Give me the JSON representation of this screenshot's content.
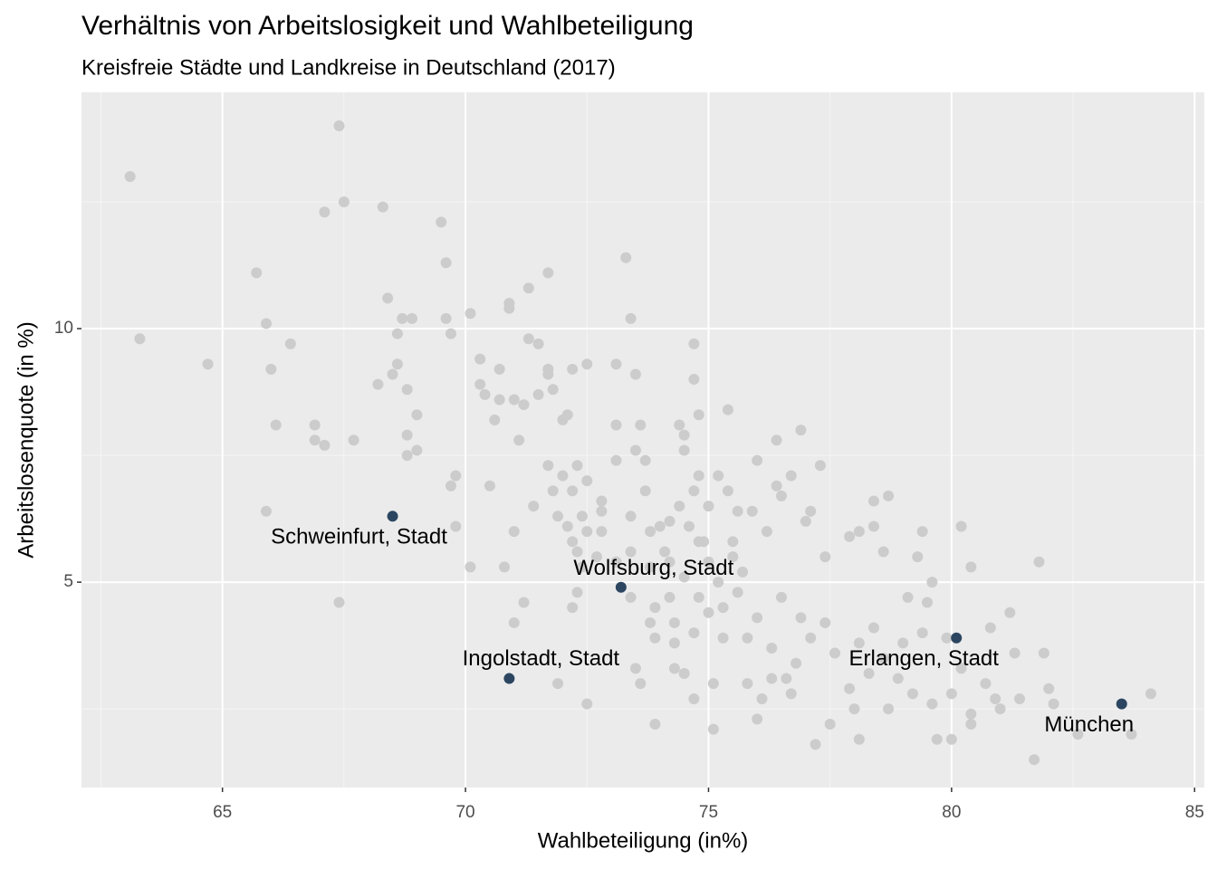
{
  "chart_data": {
    "type": "scatter",
    "title": "Verhältnis von Arbeitslosigkeit und Wahlbeteiligung",
    "subtitle": "Kreisfreie Städte und Landkreise in Deutschland (2017)",
    "x_label": "Wahlbeteiligung (in%)",
    "y_label": "Arbeitslosenquote (in %)",
    "xlim": [
      62.1,
      85.2
    ],
    "ylim": [
      0.95,
      14.66
    ],
    "xticks": [
      65,
      70,
      75,
      80,
      85
    ],
    "yticks": [
      5,
      10
    ],
    "xminor": [
      62.5,
      67.5,
      72.5,
      77.5,
      82.5
    ],
    "yminor": [
      2.5,
      7.5,
      12.5
    ],
    "grid": true,
    "points": {
      "color": "#cccccc",
      "x": [
        63.1,
        63.3,
        64.7,
        65.7,
        65.9,
        65.9,
        66.0,
        66.1,
        66.4,
        66.9,
        66.9,
        67.1,
        67.1,
        67.4,
        67.5,
        67.4,
        67.7,
        68.2,
        68.3,
        68.4,
        68.5,
        68.6,
        68.6,
        68.7,
        68.8,
        68.8,
        68.8,
        68.9,
        69.0,
        69.0,
        69.5,
        69.6,
        69.6,
        69.7,
        69.8,
        69.7,
        69.8,
        70.1,
        70.1,
        70.3,
        70.3,
        70.4,
        70.5,
        70.6,
        70.7,
        70.7,
        70.8,
        70.9,
        70.9,
        71.0,
        71.0,
        71.0,
        71.1,
        71.2,
        71.3,
        71.3,
        71.2,
        71.4,
        71.5,
        71.5,
        71.7,
        71.7,
        71.7,
        71.7,
        71.8,
        71.8,
        71.9,
        71.9,
        72.0,
        72.0,
        72.1,
        72.1,
        72.2,
        72.2,
        72.2,
        72.2,
        72.3,
        72.3,
        72.3,
        72.4,
        72.4,
        72.5,
        72.5,
        72.5,
        72.5,
        72.7,
        72.8,
        72.8,
        73.1,
        73.1,
        73.1,
        73.3,
        73.4,
        73.4,
        73.4,
        73.5,
        73.5,
        73.5,
        73.6,
        73.7,
        73.7,
        73.8,
        73.8,
        73.9,
        73.9,
        74.0,
        74.1,
        74.2,
        74.2,
        74.3,
        74.3,
        74.4,
        74.4,
        74.5,
        74.5,
        74.6,
        74.7,
        74.7,
        74.7,
        74.7,
        74.8,
        74.8,
        74.9,
        75.0,
        75.1,
        75.1,
        75.2,
        75.3,
        75.4,
        75.4,
        75.5,
        75.6,
        75.7,
        75.8,
        75.9,
        76.0,
        76.0,
        76.2,
        76.4,
        76.4,
        76.5,
        76.7,
        76.9,
        77.0,
        77.1,
        77.3,
        77.4,
        77.2,
        77.5,
        77.9,
        78.1,
        78.1,
        78.4,
        78.4,
        78.7,
        78.6,
        79.1,
        79.3,
        79.4,
        79.6,
        79.5,
        79.7,
        80.0,
        80.2,
        80.4,
        80.8,
        81.2,
        81.3,
        81.4,
        81.7,
        81.8,
        81.9,
        82.0,
        82.1,
        82.6,
        83.7,
        84.1,
        80.9,
        80.7,
        80.4,
        80.0,
        79.6,
        79.2,
        78.9,
        78.6,
        78.4,
        78.1,
        77.9,
        77.6,
        77.4,
        77.1,
        76.8,
        76.6,
        76.3,
        76.0,
        75.8,
        75.6,
        75.3,
        75.0,
        74.8,
        74.5,
        74.3,
        74.2,
        73.9,
        73.8,
        73.6,
        76.5,
        76.9,
        76.3,
        76.1,
        78.3,
        78.7,
        79.0,
        79.9,
        80.2,
        79.4,
        76.7,
        78.0,
        80.4,
        81.0,
        74.5,
        74.7,
        75.2,
        75.5,
        75.0,
        74.8,
        73.4,
        73.1,
        72.8
      ],
      "y": [
        13.0,
        9.8,
        9.3,
        11.1,
        10.1,
        6.4,
        9.2,
        8.1,
        9.7,
        8.1,
        7.8,
        7.7,
        12.3,
        14.0,
        12.5,
        4.6,
        7.8,
        8.9,
        12.4,
        10.6,
        9.1,
        9.3,
        9.9,
        10.2,
        8.8,
        7.9,
        7.5,
        10.2,
        8.3,
        7.6,
        12.1,
        11.3,
        10.2,
        9.9,
        7.1,
        6.9,
        6.1,
        10.3,
        5.3,
        9.4,
        8.9,
        8.7,
        6.9,
        8.2,
        9.2,
        8.6,
        5.3,
        10.5,
        10.4,
        8.6,
        6.0,
        4.2,
        7.8,
        8.5,
        10.8,
        9.8,
        4.6,
        6.5,
        9.7,
        8.7,
        11.1,
        7.3,
        9.2,
        9.1,
        8.8,
        6.8,
        6.3,
        3.0,
        7.1,
        8.2,
        8.3,
        6.1,
        9.2,
        6.8,
        5.8,
        4.5,
        7.3,
        5.6,
        4.8,
        6.3,
        5.3,
        9.3,
        7.0,
        6.0,
        2.6,
        5.5,
        6.6,
        6.4,
        9.3,
        8.1,
        7.4,
        11.4,
        10.2,
        6.3,
        5.6,
        9.1,
        7.6,
        3.3,
        8.1,
        7.4,
        6.8,
        6.0,
        5.3,
        3.9,
        2.2,
        6.1,
        5.6,
        6.2,
        5.4,
        4.2,
        3.3,
        8.1,
        6.5,
        7.9,
        7.6,
        6.1,
        9.7,
        9.0,
        6.8,
        2.7,
        8.3,
        7.1,
        5.8,
        6.5,
        3.0,
        2.1,
        7.1,
        3.9,
        8.4,
        6.8,
        5.8,
        6.4,
        5.2,
        3.9,
        6.4,
        7.4,
        2.3,
        6.0,
        7.8,
        6.9,
        6.7,
        7.1,
        8.0,
        6.2,
        6.4,
        7.3,
        5.5,
        1.8,
        2.2,
        5.9,
        6.0,
        1.9,
        6.6,
        6.1,
        6.7,
        5.6,
        4.7,
        5.5,
        6.0,
        5.0,
        4.6,
        1.9,
        1.9,
        6.1,
        5.3,
        4.1,
        4.4,
        3.6,
        2.7,
        1.5,
        5.4,
        3.6,
        2.9,
        2.6,
        2.0,
        2.0,
        2.8,
        2.7,
        3.0,
        2.2,
        2.8,
        2.6,
        2.8,
        3.1,
        3.5,
        4.1,
        3.8,
        2.9,
        3.6,
        4.2,
        3.9,
        3.4,
        3.1,
        3.7,
        4.3,
        3.0,
        4.8,
        4.5,
        4.4,
        4.7,
        5.1,
        3.8,
        4.7,
        4.5,
        4.2,
        3.0,
        4.7,
        4.3,
        3.1,
        2.7,
        3.2,
        2.5,
        3.8,
        3.9,
        3.3,
        4.0,
        2.8,
        2.5,
        2.4,
        2.5,
        3.2,
        4.0,
        5.0,
        5.5,
        5.4,
        5.8,
        4.7,
        5.4,
        6.0
      ]
    },
    "highlight": {
      "color": "#2c4661",
      "labels": [
        "Schweinfurt, Stadt",
        "Wolfsburg, Stadt",
        "Ingolstadt, Stadt",
        "Erlangen, Stadt",
        "München"
      ],
      "x": [
        68.5,
        73.2,
        70.9,
        80.1,
        83.5
      ],
      "y": [
        6.3,
        4.9,
        3.1,
        3.9,
        2.6
      ]
    }
  }
}
